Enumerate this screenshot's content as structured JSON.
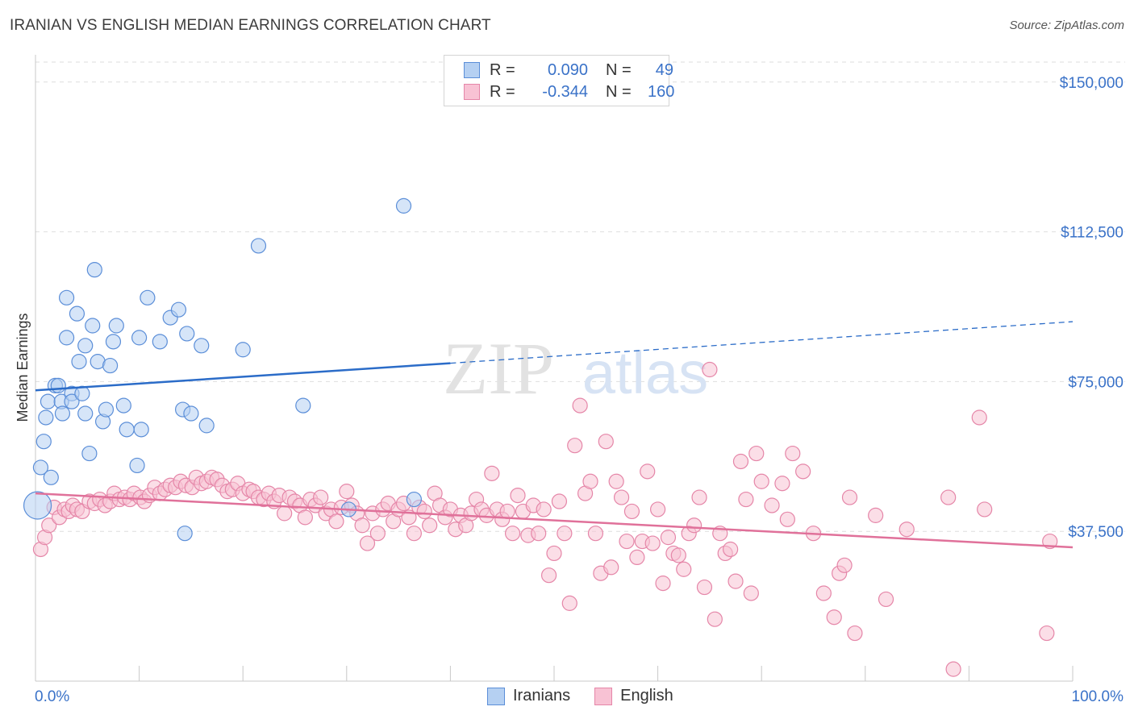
{
  "title": "IRANIAN VS ENGLISH MEDIAN EARNINGS CORRELATION CHART",
  "source": "Source: ZipAtlas.com",
  "watermark": {
    "zip": "ZIP",
    "atlas": "atlas"
  },
  "legend": {
    "rows": [
      {
        "r_label": "R =",
        "r_value": "0.090",
        "n_label": "N =",
        "n_value": "49"
      },
      {
        "r_label": "R =",
        "r_value": "-0.344",
        "n_label": "N =",
        "n_value": "160"
      }
    ]
  },
  "colors": {
    "iranian_fill": "#b5d0f2",
    "iranian_stroke": "#5b8ed8",
    "iranian_line": "#2b6cc8",
    "english_fill": "#f8c2d4",
    "english_stroke": "#e586a8",
    "english_line": "#e0719a",
    "axis_label_color": "#3a72c8",
    "grid": "#dedede"
  },
  "chart_data": {
    "type": "scatter",
    "title": "IRANIAN VS ENGLISH MEDIAN EARNINGS CORRELATION CHART",
    "xlabel": "",
    "ylabel": "Median Earnings",
    "xlim": [
      0,
      100
    ],
    "ylim": [
      0,
      155000
    ],
    "x_tick_labels": [
      "0.0%",
      "100.0%"
    ],
    "y_ticks": [
      37500,
      75000,
      112500,
      150000
    ],
    "y_tick_labels": [
      "$37,500",
      "$75,000",
      "$112,500",
      "$150,000"
    ],
    "legend_position": "bottom-center",
    "series": [
      {
        "name": "Iranians",
        "r": 0.09,
        "n": 49,
        "trend": {
          "x0": 0,
          "y0": 72800,
          "x1": 40,
          "y1": 79600,
          "dashed_to_x": 100,
          "dashed_to_y": 90000
        },
        "points": [
          [
            0.2,
            44000,
            "big"
          ],
          [
            0.5,
            53500
          ],
          [
            0.8,
            60000
          ],
          [
            1.0,
            66000
          ],
          [
            1.2,
            70000
          ],
          [
            1.5,
            51000
          ],
          [
            1.9,
            74000
          ],
          [
            2.2,
            74000
          ],
          [
            2.5,
            70000
          ],
          [
            2.6,
            67000
          ],
          [
            3.0,
            86000
          ],
          [
            3.0,
            96000
          ],
          [
            3.5,
            72000
          ],
          [
            3.5,
            70000
          ],
          [
            4.0,
            92000
          ],
          [
            4.2,
            80000
          ],
          [
            4.5,
            72000
          ],
          [
            4.8,
            84000
          ],
          [
            4.8,
            67000
          ],
          [
            5.2,
            57000
          ],
          [
            5.5,
            89000
          ],
          [
            5.7,
            103000
          ],
          [
            6.0,
            80000
          ],
          [
            6.5,
            65000
          ],
          [
            6.8,
            68000
          ],
          [
            7.2,
            79000
          ],
          [
            7.5,
            85000
          ],
          [
            7.8,
            89000
          ],
          [
            8.5,
            69000
          ],
          [
            8.8,
            63000
          ],
          [
            9.8,
            54000
          ],
          [
            10.0,
            86000
          ],
          [
            10.2,
            63000
          ],
          [
            10.8,
            96000
          ],
          [
            12.0,
            85000
          ],
          [
            13.0,
            91000
          ],
          [
            13.8,
            93000
          ],
          [
            14.2,
            68000
          ],
          [
            14.4,
            37000
          ],
          [
            14.6,
            87000
          ],
          [
            15.0,
            67000
          ],
          [
            16.0,
            84000
          ],
          [
            16.5,
            64000
          ],
          [
            20.0,
            83000
          ],
          [
            21.5,
            109000
          ],
          [
            25.8,
            69000
          ],
          [
            30.2,
            43000
          ],
          [
            35.5,
            119000
          ],
          [
            36.5,
            45500
          ]
        ]
      },
      {
        "name": "English",
        "r": -0.344,
        "n": 160,
        "trend": {
          "x0": 0,
          "y0": 47000,
          "x1": 100,
          "y1": 33500
        },
        "points": [
          [
            0.5,
            33000
          ],
          [
            0.9,
            36000
          ],
          [
            1.3,
            39000
          ],
          [
            1.8,
            43500
          ],
          [
            2.3,
            41000
          ],
          [
            2.8,
            43000
          ],
          [
            3.2,
            42500
          ],
          [
            3.6,
            44000
          ],
          [
            4.0,
            43000
          ],
          [
            4.5,
            42500
          ],
          [
            5.2,
            45000
          ],
          [
            5.7,
            44500
          ],
          [
            6.2,
            45500
          ],
          [
            6.7,
            44000
          ],
          [
            7.2,
            45000
          ],
          [
            7.6,
            47000
          ],
          [
            8.1,
            45500
          ],
          [
            8.6,
            46000
          ],
          [
            9.1,
            45500
          ],
          [
            9.5,
            47000
          ],
          [
            10.1,
            46000
          ],
          [
            10.5,
            45000
          ],
          [
            11.0,
            46500
          ],
          [
            11.5,
            48500
          ],
          [
            12.0,
            47000
          ],
          [
            12.5,
            48000
          ],
          [
            13.0,
            49000
          ],
          [
            13.5,
            48500
          ],
          [
            14.0,
            50000
          ],
          [
            14.5,
            49000
          ],
          [
            15.1,
            48500
          ],
          [
            15.5,
            51000
          ],
          [
            16.0,
            49500
          ],
          [
            16.5,
            50000
          ],
          [
            17.0,
            51000
          ],
          [
            17.5,
            50500
          ],
          [
            18.0,
            49000
          ],
          [
            18.5,
            47500
          ],
          [
            19.0,
            48000
          ],
          [
            19.5,
            49500
          ],
          [
            20.0,
            47000
          ],
          [
            20.6,
            48000
          ],
          [
            21.0,
            47500
          ],
          [
            21.5,
            46000
          ],
          [
            22.0,
            45500
          ],
          [
            22.5,
            47000
          ],
          [
            23.0,
            45000
          ],
          [
            23.5,
            46500
          ],
          [
            24.0,
            42000
          ],
          [
            24.5,
            46000
          ],
          [
            25.0,
            45000
          ],
          [
            25.5,
            44000
          ],
          [
            26.0,
            41000
          ],
          [
            26.5,
            45500
          ],
          [
            27.0,
            44000
          ],
          [
            27.5,
            46000
          ],
          [
            28.0,
            42000
          ],
          [
            28.5,
            43000
          ],
          [
            29.0,
            40000
          ],
          [
            29.5,
            43500
          ],
          [
            30.0,
            47500
          ],
          [
            30.5,
            44000
          ],
          [
            31.0,
            42000
          ],
          [
            31.5,
            39000
          ],
          [
            32.0,
            34500
          ],
          [
            32.5,
            42000
          ],
          [
            33.0,
            37000
          ],
          [
            33.5,
            43000
          ],
          [
            34.0,
            44500
          ],
          [
            34.5,
            40000
          ],
          [
            35.0,
            43000
          ],
          [
            35.5,
            44500
          ],
          [
            36.0,
            41000
          ],
          [
            36.5,
            37000
          ],
          [
            37.0,
            43500
          ],
          [
            37.5,
            42500
          ],
          [
            38.0,
            39000
          ],
          [
            38.5,
            47000
          ],
          [
            39.0,
            44000
          ],
          [
            39.5,
            41000
          ],
          [
            40.0,
            43000
          ],
          [
            40.5,
            38000
          ],
          [
            41.0,
            41500
          ],
          [
            41.5,
            39000
          ],
          [
            42.0,
            42000
          ],
          [
            42.5,
            45500
          ],
          [
            43.0,
            43000
          ],
          [
            43.5,
            41500
          ],
          [
            44.0,
            52000
          ],
          [
            44.5,
            43000
          ],
          [
            45.0,
            40500
          ],
          [
            45.5,
            42500
          ],
          [
            46.0,
            37000
          ],
          [
            46.5,
            46500
          ],
          [
            47.0,
            42500
          ],
          [
            47.5,
            36500
          ],
          [
            48.0,
            44000
          ],
          [
            48.5,
            37000
          ],
          [
            49.0,
            43000
          ],
          [
            49.5,
            26500
          ],
          [
            50.0,
            32000
          ],
          [
            50.5,
            45000
          ],
          [
            51.0,
            37000
          ],
          [
            51.5,
            19500
          ],
          [
            52.0,
            59000
          ],
          [
            52.5,
            69000
          ],
          [
            53.0,
            47000
          ],
          [
            53.5,
            50000
          ],
          [
            54.0,
            37000
          ],
          [
            54.5,
            27000
          ],
          [
            55.0,
            60000
          ],
          [
            55.5,
            28500
          ],
          [
            56.0,
            50000
          ],
          [
            56.5,
            46000
          ],
          [
            57.0,
            35000
          ],
          [
            57.5,
            42500
          ],
          [
            58.0,
            31000
          ],
          [
            58.5,
            35000
          ],
          [
            59.0,
            52500
          ],
          [
            59.5,
            34500
          ],
          [
            60.0,
            43000
          ],
          [
            60.5,
            24500
          ],
          [
            61.0,
            36000
          ],
          [
            61.5,
            32000
          ],
          [
            62.0,
            31500
          ],
          [
            62.5,
            28000
          ],
          [
            63.0,
            37000
          ],
          [
            63.5,
            39000
          ],
          [
            64.0,
            46000
          ],
          [
            64.5,
            23500
          ],
          [
            65.0,
            78000
          ],
          [
            65.5,
            15500
          ],
          [
            66.0,
            37000
          ],
          [
            66.5,
            32000
          ],
          [
            67.0,
            33000
          ],
          [
            67.5,
            25000
          ],
          [
            68.0,
            55000
          ],
          [
            68.5,
            45500
          ],
          [
            69.0,
            22000
          ],
          [
            69.5,
            57000
          ],
          [
            70.0,
            50000
          ],
          [
            71.0,
            44000
          ],
          [
            72.0,
            49500
          ],
          [
            72.5,
            40500
          ],
          [
            73.0,
            57000
          ],
          [
            74.0,
            52500
          ],
          [
            75.0,
            37000
          ],
          [
            76.0,
            22000
          ],
          [
            77.0,
            16000
          ],
          [
            77.5,
            27000
          ],
          [
            78.0,
            29000
          ],
          [
            78.5,
            46000
          ],
          [
            79.0,
            12000
          ],
          [
            81.0,
            41500
          ],
          [
            82.0,
            20500
          ],
          [
            84.0,
            38000
          ],
          [
            88.0,
            46000
          ],
          [
            88.5,
            3000
          ],
          [
            91.0,
            66000
          ],
          [
            91.5,
            43000
          ],
          [
            97.5,
            12000
          ],
          [
            97.8,
            35000
          ]
        ]
      }
    ]
  }
}
